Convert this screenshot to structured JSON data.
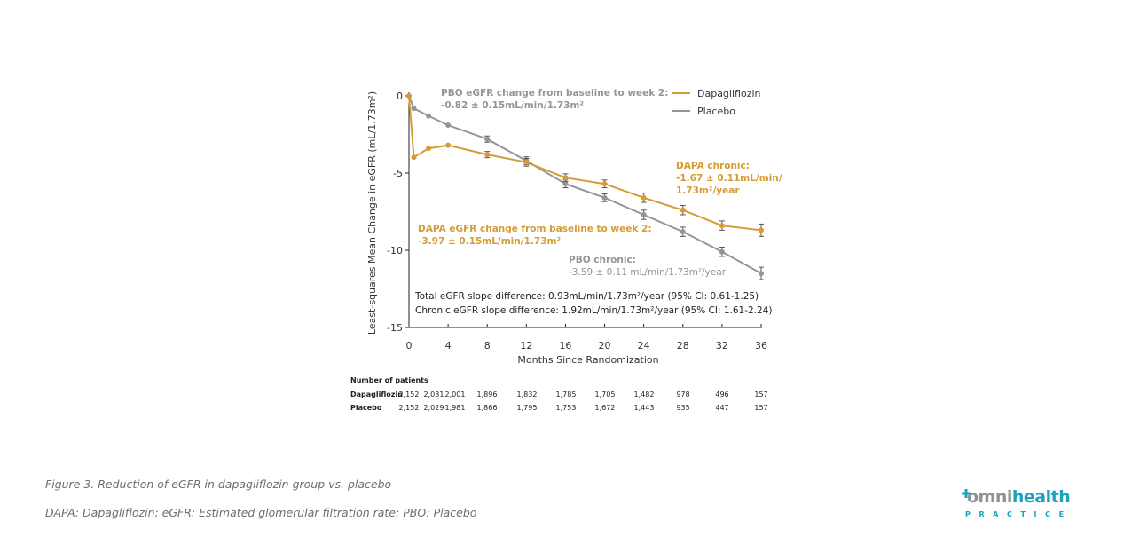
{
  "colors": {
    "dapagliflozin": "#d59c35",
    "placebo": "#959595",
    "axis": "#222222",
    "caption": "#6d6d6d",
    "brand_gray": "#8d9296",
    "brand_teal": "#1aa3bf"
  },
  "chart_data": {
    "type": "line",
    "title": "",
    "xlabel": "Months Since Randomization",
    "ylabel": "Least-squares Mean Change in eGFR (mL/1.73m²)",
    "xlim": [
      0,
      36
    ],
    "ylim": [
      -15,
      0
    ],
    "x_ticks": [
      0,
      4,
      8,
      12,
      16,
      20,
      24,
      28,
      32,
      36
    ],
    "y_ticks": [
      0,
      -5,
      -10,
      -15
    ],
    "y_tick_labels": [
      "0",
      "-5",
      "-10",
      "-15"
    ],
    "grid": false,
    "legend_position": "top-right",
    "series": [
      {
        "name": "Dapagliflozin",
        "color_key": "dapagliflozin",
        "x": [
          0,
          0.5,
          2,
          4,
          8,
          12,
          16,
          20,
          24,
          28,
          32,
          36
        ],
        "values": [
          0,
          -3.97,
          -3.4,
          -3.2,
          -3.8,
          -4.3,
          -5.3,
          -5.7,
          -6.6,
          -7.4,
          -8.4,
          -8.7
        ],
        "error": [
          0,
          0,
          0,
          0,
          0.2,
          0.25,
          0.25,
          0.25,
          0.3,
          0.3,
          0.3,
          0.4
        ]
      },
      {
        "name": "Placebo",
        "color_key": "placebo",
        "x": [
          0,
          0.5,
          2,
          4,
          8,
          12,
          16,
          20,
          24,
          28,
          32,
          36
        ],
        "values": [
          0,
          -0.82,
          -1.3,
          -1.9,
          -2.8,
          -4.2,
          -5.7,
          -6.6,
          -7.7,
          -8.8,
          -10.1,
          -11.5
        ],
        "error": [
          0,
          0,
          0,
          0,
          0.2,
          0.25,
          0.25,
          0.25,
          0.3,
          0.3,
          0.3,
          0.4
        ]
      }
    ],
    "annotations": {
      "pbo_week2_title": "PBO eGFR change from baseline to week 2:",
      "pbo_week2_value": "-0.82 ± 0.15mL/min/1.73m²",
      "dapa_chronic_line1": "DAPA chronic:",
      "dapa_chronic_line2": "-1.67 ± 0.11mL/min/",
      "dapa_chronic_line3": "1.73m²/year",
      "dapa_week2_title": "DAPA eGFR change from baseline to week 2:",
      "dapa_week2_value": "-3.97 ± 0.15mL/min/1.73m²",
      "pbo_chronic_title": "PBO chronic:",
      "pbo_chronic_value": "-3.59 ± 0.11 mL/min/1.73m²/year",
      "total_slope": "Total eGFR slope difference: 0.93mL/min/1.73m²/year (95% CI: 0.61-1.25)",
      "chronic_slope": "Chronic eGFR slope difference: 1.92mL/min/1.73m²/year (95% CI: 1.61-2.24)"
    },
    "patients_table": {
      "header": "Number of patients",
      "rows": [
        {
          "label": "Dapagliflozin",
          "values": [
            "2,152",
            "2,031",
            "2,001",
            "1,896",
            "1,832",
            "1,785",
            "1,705",
            "1,482",
            "978",
            "496",
            "157"
          ]
        },
        {
          "label": "Placebo",
          "values": [
            "2,152",
            "2,029",
            "1,981",
            "1,866",
            "1,795",
            "1,753",
            "1,672",
            "1,443",
            "935",
            "447",
            "157"
          ]
        }
      ]
    }
  },
  "captions": {
    "figure": "Figure 3. Reduction of eGFR in dapagliflozin group vs. placebo",
    "abbreviations": "DAPA: Dapagliflozin; eGFR: Estimated glomerular filtration rate; PBO: Placebo"
  },
  "logo": {
    "omni": "omni",
    "health": "health",
    "sub": "PRACTICE",
    "icon": "plus-speech-bubble-icon"
  }
}
